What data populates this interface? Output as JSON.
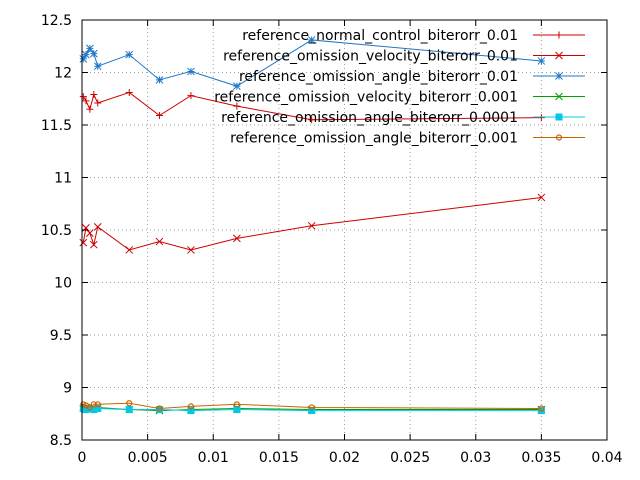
{
  "chart_data": {
    "type": "line",
    "title": "",
    "xlabel": "",
    "ylabel": "",
    "xlim": [
      0,
      0.04
    ],
    "ylim": [
      8.5,
      12.5
    ],
    "xticks": [
      {
        "value": 0,
        "label": "0"
      },
      {
        "value": 0.005,
        "label": "0.005"
      },
      {
        "value": 0.01,
        "label": "0.01"
      },
      {
        "value": 0.015,
        "label": "0.015"
      },
      {
        "value": 0.02,
        "label": "0.02"
      },
      {
        "value": 0.025,
        "label": "0.025"
      },
      {
        "value": 0.03,
        "label": "0.03"
      },
      {
        "value": 0.035,
        "label": "0.035"
      },
      {
        "value": 0.04,
        "label": "0.04"
      }
    ],
    "yticks": [
      {
        "value": 8.5,
        "label": "8.5"
      },
      {
        "value": 9,
        "label": "9"
      },
      {
        "value": 9.5,
        "label": "9.5"
      },
      {
        "value": 10,
        "label": "10"
      },
      {
        "value": 10.5,
        "label": "10.5"
      },
      {
        "value": 11,
        "label": "11"
      },
      {
        "value": 11.5,
        "label": "11.5"
      },
      {
        "value": 12,
        "label": "12"
      },
      {
        "value": 12.5,
        "label": "12.5"
      }
    ],
    "grid": {
      "x": true,
      "y": true,
      "style": "dotted"
    },
    "legend": {
      "position": "top-right"
    },
    "series": [
      {
        "name": "reference_normal_control_biterorr_0.01",
        "color": "#cc0000",
        "marker": "plus",
        "x": [
          0.0001,
          0.0003,
          0.0006,
          0.0009,
          0.0012,
          0.0036,
          0.0059,
          0.0083,
          0.0118,
          0.0175,
          0.035
        ],
        "y": [
          11.77,
          11.73,
          11.65,
          11.79,
          11.71,
          11.81,
          11.59,
          11.78,
          11.68,
          11.55,
          11.57
        ]
      },
      {
        "name": "reference_omission_velocity_biterorr_0.01",
        "color": "#cc0000",
        "marker": "cross",
        "x": [
          0.0001,
          0.0003,
          0.0006,
          0.0009,
          0.0012,
          0.0036,
          0.0059,
          0.0083,
          0.0118,
          0.0175,
          0.035
        ],
        "y": [
          10.38,
          10.52,
          10.47,
          10.36,
          10.53,
          10.31,
          10.39,
          10.31,
          10.42,
          10.54,
          10.81
        ]
      },
      {
        "name": "reference_omission_angle_biterorr_0.01",
        "color": "#1f77c8",
        "marker": "star",
        "x": [
          0.0001,
          0.0003,
          0.0006,
          0.0009,
          0.0012,
          0.0036,
          0.0059,
          0.0083,
          0.0118,
          0.0175,
          0.035
        ],
        "y": [
          12.13,
          12.17,
          12.23,
          12.18,
          12.06,
          12.17,
          11.93,
          12.01,
          11.87,
          12.31,
          12.11
        ]
      },
      {
        "name": "reference_omission_velocity_biterorr_0.001",
        "color": "#00a000",
        "marker": "cross",
        "x": [
          0.0001,
          0.0003,
          0.0006,
          0.0009,
          0.0012,
          0.0036,
          0.0059,
          0.0083,
          0.0118,
          0.0175,
          0.035
        ],
        "y": [
          8.8,
          8.81,
          8.79,
          8.8,
          8.81,
          8.79,
          8.78,
          8.79,
          8.8,
          8.79,
          8.79
        ]
      },
      {
        "name": "reference_omission_angle_biterorr_0.0001",
        "color": "#00c8e6",
        "marker": "square",
        "x": [
          0.0001,
          0.0003,
          0.0006,
          0.0009,
          0.0012,
          0.0036,
          0.0059,
          0.0083,
          0.0118,
          0.0175,
          0.035
        ],
        "y": [
          8.8,
          8.79,
          8.8,
          8.79,
          8.8,
          8.79,
          8.79,
          8.78,
          8.79,
          8.78,
          8.78
        ]
      },
      {
        "name": "reference_omission_angle_biterorr_0.001",
        "color": "#c86400",
        "marker": "circle",
        "x": [
          0.0001,
          0.0003,
          0.0006,
          0.0009,
          0.0012,
          0.0036,
          0.0059,
          0.0083,
          0.0118,
          0.0175,
          0.035
        ],
        "y": [
          8.84,
          8.83,
          8.81,
          8.84,
          8.84,
          8.85,
          8.8,
          8.82,
          8.84,
          8.81,
          8.8
        ]
      }
    ]
  }
}
